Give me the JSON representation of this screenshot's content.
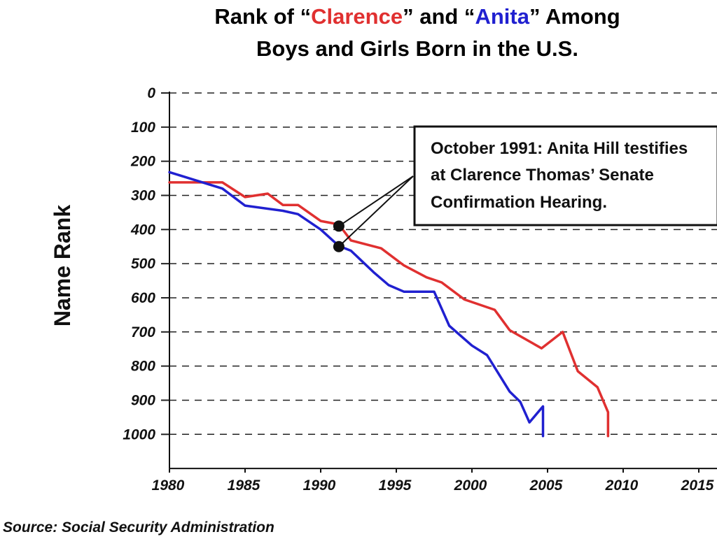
{
  "title": {
    "line1_part1": "Rank of  “",
    "line1_red": "Clarence",
    "line1_part2": "” and “",
    "line1_blue": "Anita",
    "line1_part3": "” Among",
    "line2": "Boys and Girls Born in the U.S."
  },
  "source": "Source: Social Security Administration",
  "annotation": {
    "lines": [
      "October 1991: Anita Hill testifies",
      "at Clarence Thomas’ Senate",
      "Confirmation Hearing."
    ],
    "x": 1991.2
  },
  "colors": {
    "clarence": "#e03030",
    "anita": "#2020d0",
    "text": "#111111",
    "grid": "#222222"
  },
  "chart_data": {
    "type": "line",
    "ylabel": "Name Rank",
    "xlabel": "",
    "xlim": [
      1980,
      2016
    ],
    "ylim": [
      0,
      1100
    ],
    "y_inverted": true,
    "x_ticks": [
      1980,
      1985,
      1990,
      1995,
      2000,
      2005,
      2010,
      2015
    ],
    "y_ticks": [
      0,
      100,
      200,
      300,
      400,
      500,
      600,
      700,
      800,
      900,
      1000
    ],
    "grid": "horizontal dashed",
    "series": [
      {
        "name": "Clarence",
        "color": "#e03030",
        "x": [
          1980,
          1983.5,
          1985,
          1986.5,
          1987.5,
          1988.5,
          1990,
          1991.2,
          1992,
          1994,
          1995.5,
          1997,
          1998,
          1999.5,
          2001.5,
          2002.5,
          2004.6,
          2006,
          2007,
          2008.3,
          2009,
          2009
        ],
        "y": [
          262,
          262,
          305,
          295,
          328,
          328,
          375,
          385,
          432,
          455,
          505,
          540,
          555,
          605,
          635,
          695,
          748,
          700,
          815,
          862,
          935,
          1005
        ]
      },
      {
        "name": "Anita",
        "color": "#2020d0",
        "x": [
          1980,
          1983.5,
          1985,
          1987.5,
          1988.5,
          1990,
          1991.2,
          1992,
          1993.5,
          1994.5,
          1995.5,
          1997.5,
          1998.5,
          2000,
          2001,
          2002.5,
          2003.2,
          2003.8,
          2004.7,
          2004.7
        ],
        "y": [
          232,
          280,
          330,
          345,
          355,
          400,
          448,
          462,
          525,
          563,
          582,
          582,
          682,
          740,
          768,
          875,
          905,
          965,
          918,
          1005
        ]
      }
    ],
    "markers": [
      {
        "series": "Clarence",
        "x": 1991.2,
        "y": 390
      },
      {
        "series": "Anita",
        "x": 1991.2,
        "y": 450
      }
    ]
  }
}
